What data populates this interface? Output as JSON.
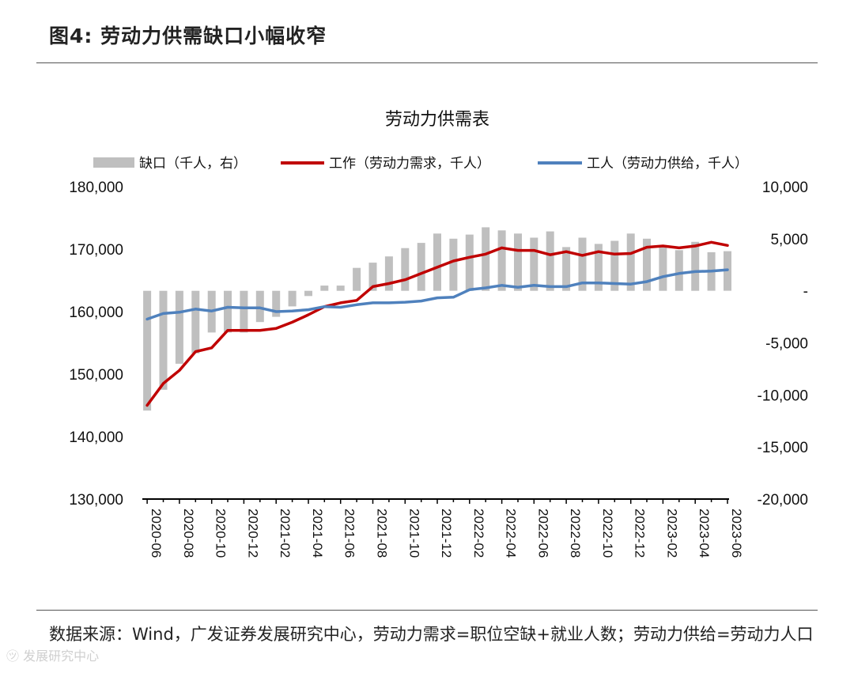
{
  "figure": {
    "title": "图4:  劳动力供需缺口小幅收窄",
    "footer": "数据来源：Wind，广发证券发展研究中心，劳动力需求=职位空缺+就业人数；劳动力供给=劳动力人口",
    "watermark": "㋡ 发展研究中心"
  },
  "chart_data": {
    "type": "bar+line",
    "title": "劳动力供需表",
    "legend": [
      {
        "label": "缺口（千人，右）",
        "kind": "bar",
        "color": "#BFBFBF"
      },
      {
        "label": "工作（劳动力需求，千人）",
        "kind": "line",
        "color": "#C00000"
      },
      {
        "label": "工人（劳动力供给，千人）",
        "kind": "line",
        "color": "#4F81BD"
      }
    ],
    "left_axis": {
      "min": 130000,
      "max": 180000,
      "ticks": [
        130000,
        140000,
        150000,
        160000,
        170000,
        180000
      ],
      "tick_labels": [
        "130,000",
        "140,000",
        "150,000",
        "160,000",
        "170,000",
        "180,000"
      ]
    },
    "right_axis": {
      "min": -20000,
      "max": 10000,
      "ticks": [
        -20000,
        -15000,
        -10000,
        -5000,
        0,
        5000,
        10000
      ],
      "tick_labels": [
        "-20,000",
        "-15,000",
        "-10,000",
        "-5,000",
        "-",
        "5,000",
        "10,000"
      ]
    },
    "x_tick_labels": [
      "2020-06",
      "2020-08",
      "2020-10",
      "2020-12",
      "2021-02",
      "2021-04",
      "2021-06",
      "2021-08",
      "2021-10",
      "2021-12",
      "2022-02",
      "2022-04",
      "2022-06",
      "2022-08",
      "2022-10",
      "2022-12",
      "2023-02",
      "2023-04",
      "2023-06"
    ],
    "categories": [
      "2020-06",
      "2020-07",
      "2020-08",
      "2020-09",
      "2020-10",
      "2020-11",
      "2020-12",
      "2021-01",
      "2021-02",
      "2021-03",
      "2021-04",
      "2021-05",
      "2021-06",
      "2021-07",
      "2021-08",
      "2021-09",
      "2021-10",
      "2021-11",
      "2021-12",
      "2022-01",
      "2022-02",
      "2022-03",
      "2022-04",
      "2022-05",
      "2022-06",
      "2022-07",
      "2022-08",
      "2022-09",
      "2022-10",
      "2022-11",
      "2022-12",
      "2023-01",
      "2023-02",
      "2023-03",
      "2023-04",
      "2023-05",
      "2023-06"
    ],
    "series": [
      {
        "name": "缺口（千人，右）",
        "axis": "right",
        "values": [
          -11500,
          -9500,
          -7000,
          -6000,
          -4000,
          -4000,
          -4000,
          -3000,
          -2500,
          -1500,
          -500,
          500,
          500,
          2200,
          2700,
          3300,
          4100,
          4600,
          5500,
          5000,
          5400,
          6100,
          5800,
          5500,
          5100,
          5700,
          4200,
          5100,
          4500,
          4800,
          5500,
          5000,
          4200,
          3900,
          4700,
          3700,
          3800
        ]
      },
      {
        "name": "工作（劳动力需求，千人）",
        "axis": "left",
        "values": [
          145000,
          148500,
          150600,
          153600,
          154200,
          157000,
          157000,
          157000,
          157300,
          158300,
          159500,
          160800,
          161400,
          161800,
          164000,
          164500,
          165100,
          166100,
          167100,
          168100,
          168700,
          169200,
          170200,
          169800,
          169800,
          169100,
          169600,
          169000,
          169600,
          169200,
          169300,
          170300,
          170500,
          170200,
          170500,
          171100,
          170600
        ]
      },
      {
        "name": "工人（劳动力供给，千人）",
        "axis": "left",
        "values": [
          158800,
          159700,
          159900,
          160400,
          160100,
          160700,
          160600,
          160600,
          160000,
          160100,
          160300,
          160800,
          160700,
          161100,
          161400,
          161400,
          161500,
          161700,
          162200,
          162300,
          163500,
          163800,
          164200,
          163900,
          164200,
          164000,
          164000,
          164600,
          164600,
          164500,
          164400,
          164800,
          165600,
          166100,
          166400,
          166500,
          166700
        ]
      }
    ]
  }
}
